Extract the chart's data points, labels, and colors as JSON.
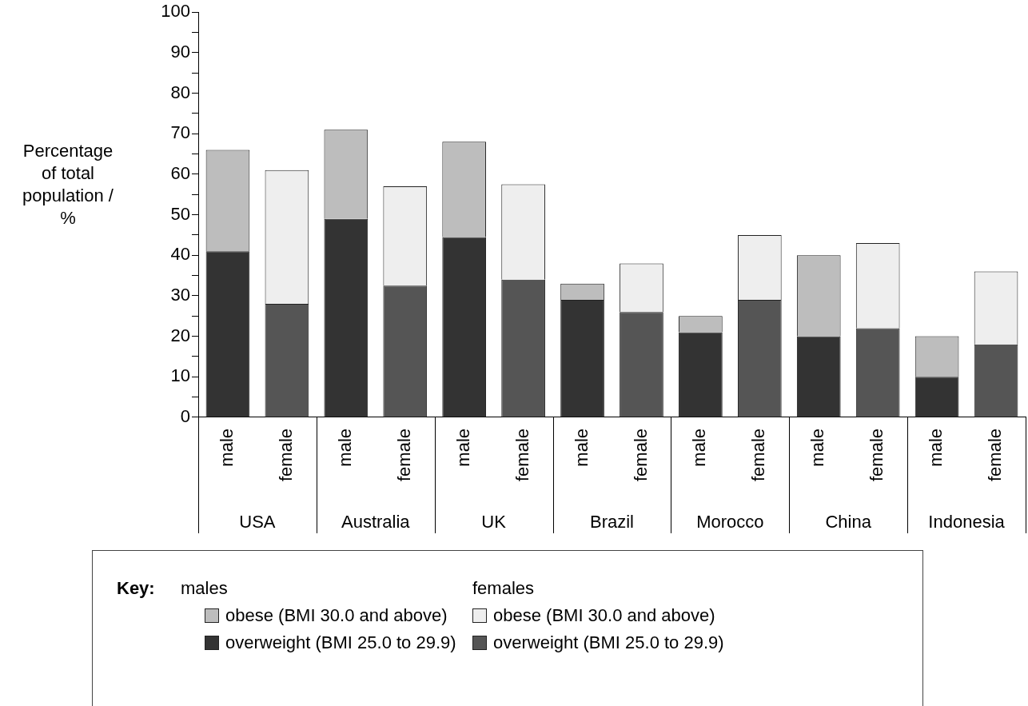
{
  "chart_data": {
    "type": "bar",
    "stacked": true,
    "ylabel": "Percentage of total population / %",
    "categories": [
      "male",
      "female",
      "male",
      "female",
      "male",
      "female",
      "male",
      "female",
      "male",
      "female",
      "male",
      "female",
      "male",
      "female"
    ],
    "series": [
      {
        "name": "overweight (BMI 25.0 to 29.9)",
        "color": "#333333",
        "values": [
          41,
          null,
          49,
          null,
          44.5,
          null,
          29,
          null,
          21,
          null,
          20,
          null,
          10,
          null
        ]
      },
      {
        "name": "obese (BMI 30.0 and above)",
        "color": "#bdbdbd",
        "values": [
          25,
          null,
          22,
          null,
          23.5,
          null,
          4,
          null,
          4,
          null,
          20,
          null,
          10,
          null
        ]
      },
      {
        "name": "overweight (BMI 25.0 to 29.9)",
        "color": "#555555",
        "values": [
          null,
          28,
          null,
          32.5,
          null,
          34,
          null,
          26,
          null,
          29,
          null,
          22,
          null,
          18
        ]
      },
      {
        "name": "obese (BMI 30.0 and above)",
        "color": "#eeeeee",
        "values": [
          null,
          33,
          null,
          24.5,
          null,
          23.5,
          null,
          12,
          null,
          16,
          null,
          21,
          null,
          18
        ]
      }
    ],
    "annotations": [
      "USA",
      "Australia",
      "UK",
      "Brazil",
      "Morocco",
      "China",
      "Indonesia",
      "males",
      "females"
    ],
    "legend_title": "Key:",
    "legend": "bottom",
    "grid": false,
    "ylim": [
      0,
      100
    ],
    "yticks": [
      0,
      {
        "value": 5,
        "label": null
      },
      10,
      {
        "value": 15,
        "label": null
      },
      20,
      {
        "value": 25,
        "label": null
      },
      30,
      {
        "value": 35,
        "label": null
      },
      40,
      {
        "value": 45,
        "label": null
      },
      50,
      {
        "value": 55,
        "label": null
      },
      60,
      {
        "value": 65,
        "label": null
      },
      70,
      {
        "value": 75,
        "label": null
      },
      80,
      {
        "value": 85,
        "label": null
      },
      90,
      {
        "value": 95,
        "label": null
      },
      100
    ]
  }
}
